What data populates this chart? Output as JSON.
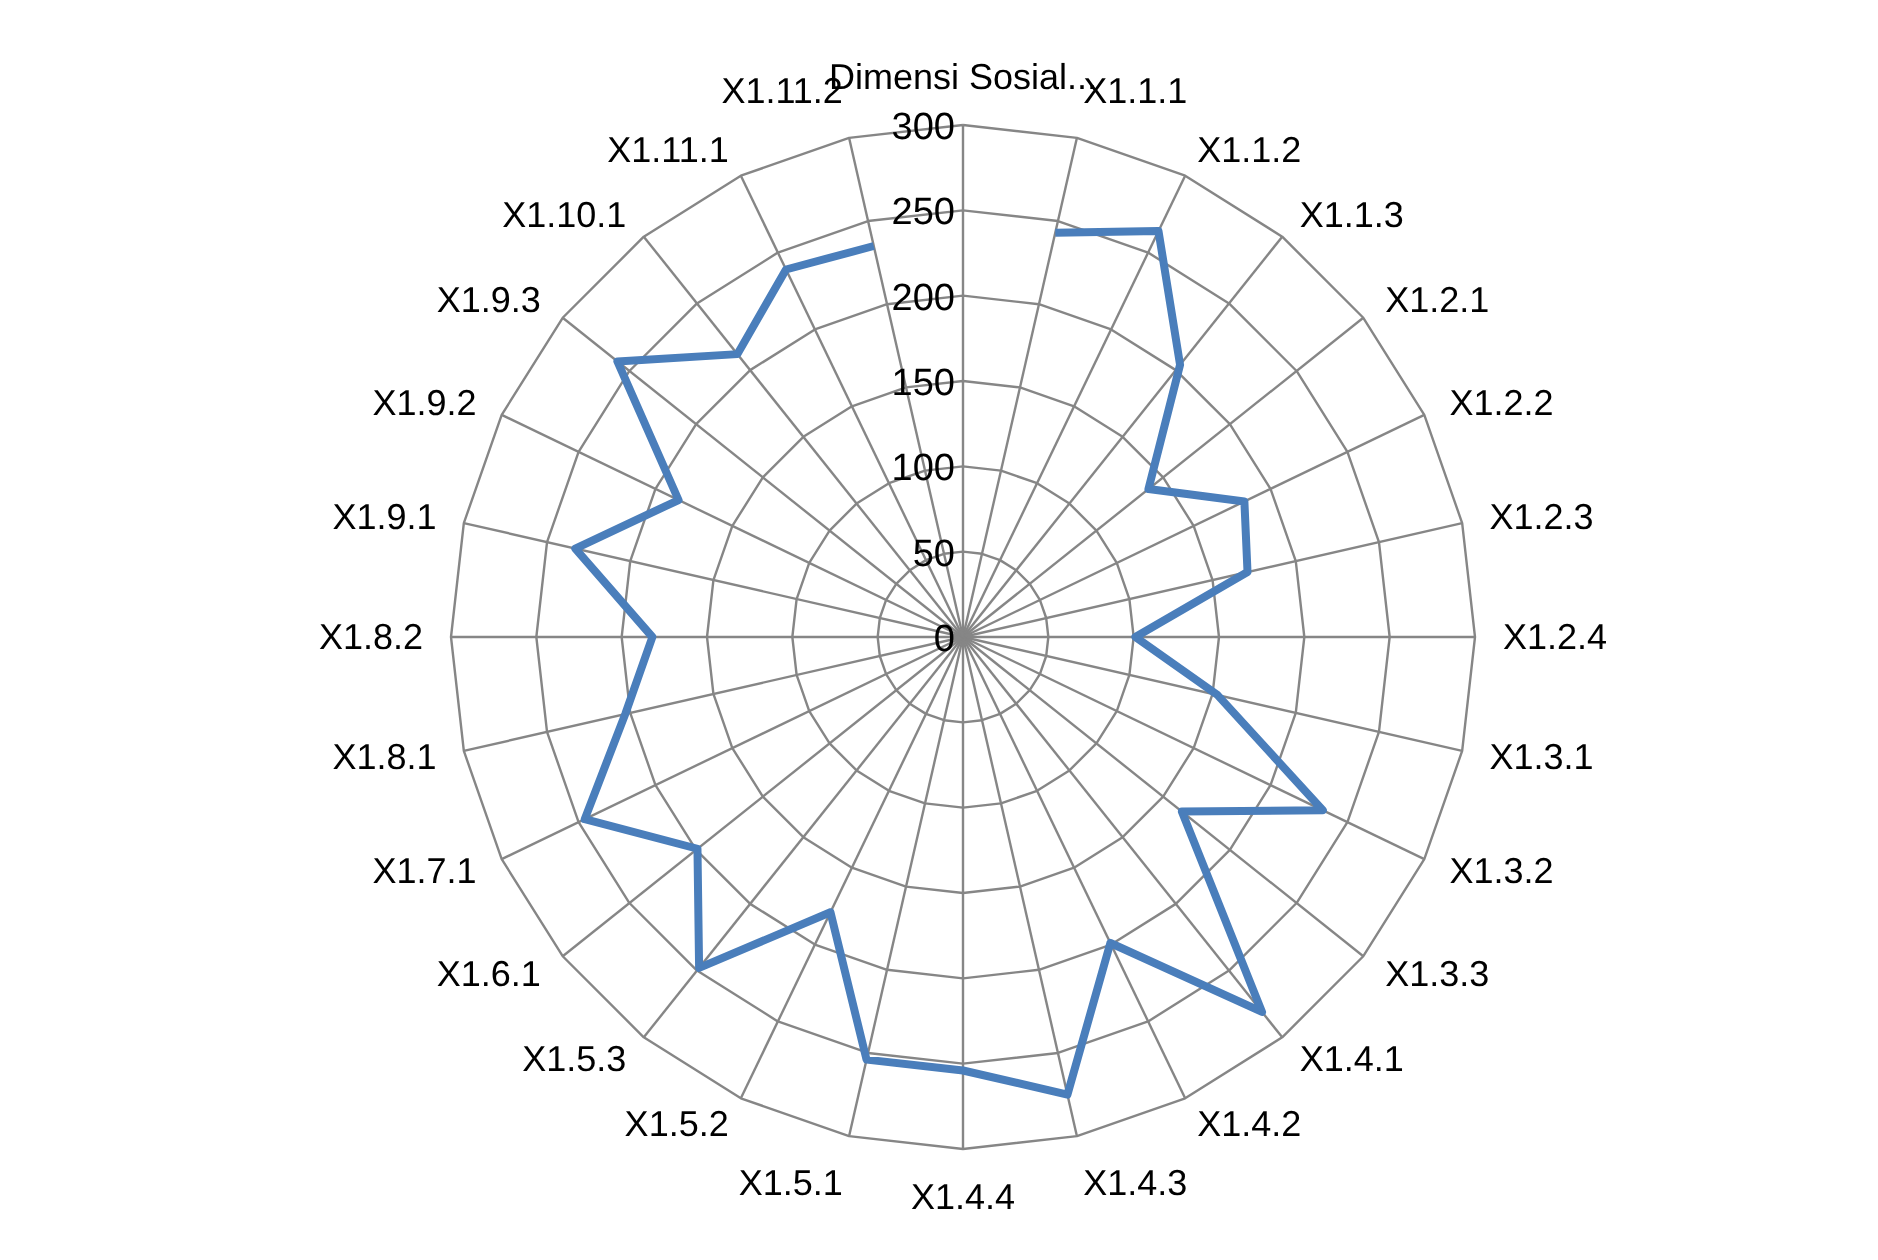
{
  "chart_data": {
    "type": "radar",
    "categories": [
      "Dimensi Sosial...",
      "X1.1.1",
      "X1.1.2",
      "X1.1.3",
      "X1.2.1",
      "X1.2.2",
      "X1.2.3",
      "X1.2.4",
      "X1.3.1",
      "X1.3.2",
      "X1.3.3",
      "X1.4.1",
      "X1.4.2",
      "X1.4.3",
      "X1.4.4",
      "X1.5.1",
      "X1.5.2",
      "X1.5.3",
      "X1.6.1",
      "X1.7.1",
      "X1.8.1",
      "X1.8.2",
      "X1.9.1",
      "X1.9.2",
      "X1.9.3",
      "X1.10.1",
      "X1.11.1",
      "X1.11.2"
    ],
    "series": [
      {
        "color": "#4a7ebb",
        "values": [
          null,
          243,
          264,
          204,
          139,
          183,
          171,
          101,
          153,
          234,
          164,
          281,
          199,
          275,
          254,
          254,
          179,
          248,
          199,
          246,
          203,
          182,
          233,
          185,
          259,
          212,
          239,
          235
        ]
      }
    ],
    "ylim": [
      0,
      300
    ],
    "yticks": [
      0,
      50,
      100,
      150,
      200,
      250,
      300
    ],
    "grid": true,
    "line_style": "solid"
  }
}
